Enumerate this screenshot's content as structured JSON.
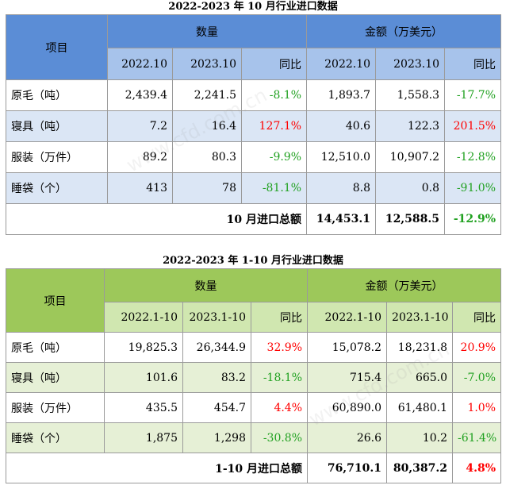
{
  "table1": {
    "title": "2022-2023 年 10 月行业进口数据",
    "item_header": "项目",
    "qty_header": "数量",
    "amt_header": "金额（万美元）",
    "sub_headers": [
      "2022.10",
      "2023.10",
      "同比",
      "2022.10",
      "2023.10",
      "同比"
    ],
    "rows": [
      {
        "label": "原毛（吨）",
        "q1": "2,439.4",
        "q2": "2,241.5",
        "qy": "-8.1%",
        "a1": "1,893.7",
        "a2": "1,558.3",
        "ay": "-17.7%"
      },
      {
        "label": "寝具（吨）",
        "q1": "7.2",
        "q2": "16.4",
        "qy": "127.1%",
        "a1": "40.6",
        "a2": "122.3",
        "ay": "201.5%"
      },
      {
        "label": "服装（万件）",
        "q1": "89.2",
        "q2": "80.3",
        "qy": "-9.9%",
        "a1": "12,510.0",
        "a2": "10,907.2",
        "ay": "-12.8%"
      },
      {
        "label": "睡袋（个）",
        "q1": "413",
        "q2": "78",
        "qy": "-81.1%",
        "a1": "8.8",
        "a2": "0.8",
        "ay": "-91.0%"
      }
    ],
    "total_label": "10 月进口总额",
    "total_a1": "14,453.1",
    "total_a2": "12,588.5",
    "total_ay": "-12.9%"
  },
  "table2": {
    "title": "2022-2023 年 1-10 月行业进口数据",
    "item_header": "项目",
    "qty_header": "数量",
    "amt_header": "金额（万美元）",
    "sub_headers": [
      "2022.1-10",
      "2023.1-10",
      "同比",
      "2022.1-10",
      "2023.1-10",
      "同比"
    ],
    "rows": [
      {
        "label": "原毛（吨）",
        "q1": "19,825.3",
        "q2": "26,344.9",
        "qy": "32.9%",
        "a1": "15,078.2",
        "a2": "18,231.8",
        "ay": "20.9%"
      },
      {
        "label": "寝具（吨）",
        "q1": "101.6",
        "q2": "83.2",
        "qy": "-18.1%",
        "a1": "715.4",
        "a2": "665.0",
        "ay": "-7.0%"
      },
      {
        "label": "服装（万件）",
        "q1": "435.5",
        "q2": "454.7",
        "qy": "4.4%",
        "a1": "60,890.0",
        "a2": "61,480.1",
        "ay": "1.0%"
      },
      {
        "label": "睡袋（个）",
        "q1": "1,875",
        "q2": "1,298",
        "qy": "-30.8%",
        "a1": "26.6",
        "a2": "10.2",
        "ay": "-61.4%"
      }
    ],
    "total_label": "1-10 月进口总额",
    "total_a1": "76,710.1",
    "total_a2": "80,387.2",
    "total_ay": "4.8%"
  },
  "watermark": "www.cfd.com.cn",
  "colors": {
    "positive": "#ff0000",
    "negative": "#21a121",
    "blue_header": "#5b8dd6",
    "green_header": "#9dc85a"
  }
}
